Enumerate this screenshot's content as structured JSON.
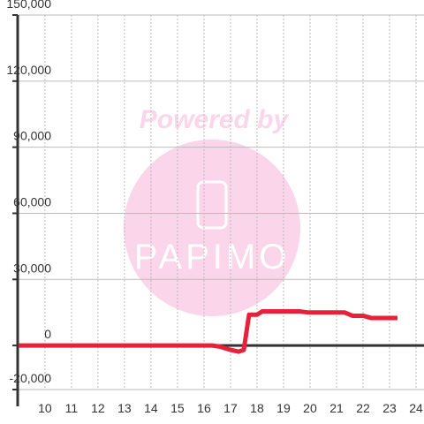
{
  "chart_data": {
    "type": "line",
    "watermark": {
      "top": "Powered by",
      "logo": "PAPIMO"
    },
    "x": [
      9,
      16.3,
      16.6,
      17.0,
      17.3,
      17.5,
      17.7,
      18.0,
      18.2,
      19.6,
      19.9,
      21.3,
      21.6,
      22.0,
      22.3,
      23.3
    ],
    "series": [
      {
        "color": "#e8203a",
        "values": [
          0,
          0,
          -500,
          -2000,
          -2800,
          -2000,
          14000,
          14000,
          15500,
          15500,
          15000,
          15000,
          13500,
          13500,
          12500,
          12500
        ]
      }
    ],
    "xlim": [
      8.97,
      24.3
    ],
    "xticks": [
      10,
      11,
      12,
      13,
      14,
      15,
      16,
      17,
      18,
      19,
      20,
      21,
      22,
      23,
      24
    ],
    "ylim": [
      -20000,
      150000
    ],
    "yticks": [
      {
        "value": -20000,
        "label": "-20,000"
      },
      0,
      {
        "value": 30000,
        "label": "30,000"
      },
      {
        "value": 60000,
        "label": "60,000"
      },
      {
        "value": 90000,
        "label": "90,000"
      },
      {
        "value": 120000,
        "label": "120,000"
      },
      {
        "value": 150000,
        "label": "150,000"
      }
    ],
    "grid": true
  }
}
